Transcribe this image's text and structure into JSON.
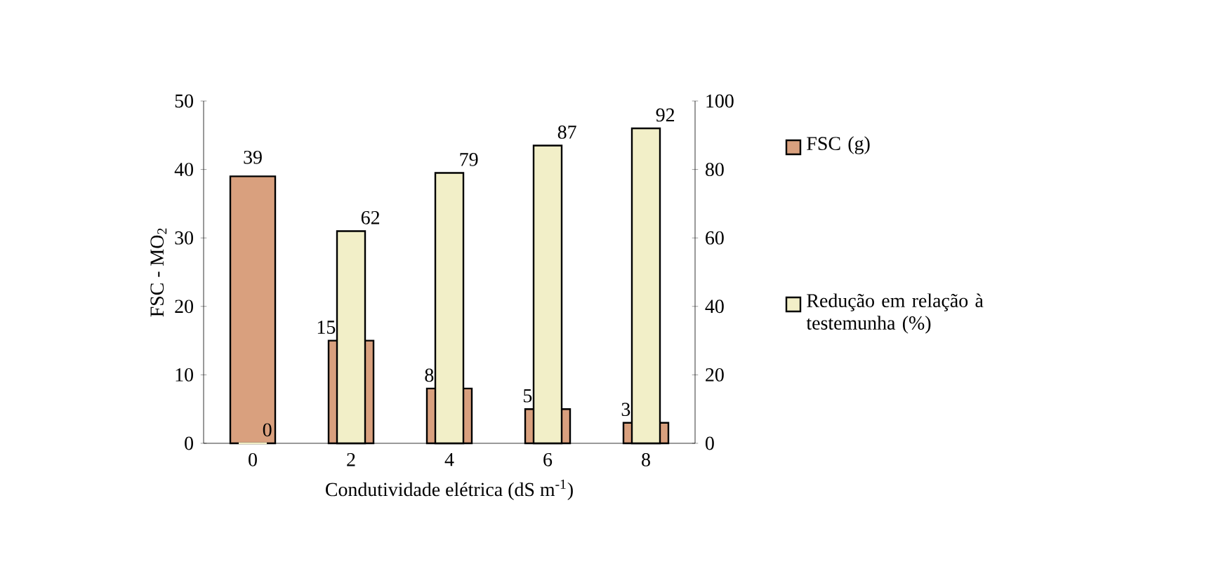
{
  "chart_data": {
    "type": "bar",
    "categories": [
      "0",
      "2",
      "4",
      "6",
      "8"
    ],
    "xlabel": "Condutividade elétrica (dS m$^{-1}$)",
    "ylabel": "FSC - MO$_{2}$",
    "series": [
      {
        "name": "FSC (g)",
        "color": "#d9a07e",
        "values": [
          39,
          15,
          8,
          5,
          3
        ]
      },
      {
        "name": "Redução em relação à testemunha (%)",
        "color": "#f2efc8",
        "values": [
          0,
          62,
          79,
          87,
          92
        ],
        "axis": "y2"
      }
    ],
    "ylim": [
      0,
      50
    ],
    "yticks": [
      0,
      10,
      20,
      30,
      40,
      50
    ],
    "y2lim": [
      0,
      100
    ],
    "y2ticks": [
      0,
      20,
      40,
      60,
      80,
      100
    ],
    "data_labels": true,
    "legend": "right"
  }
}
